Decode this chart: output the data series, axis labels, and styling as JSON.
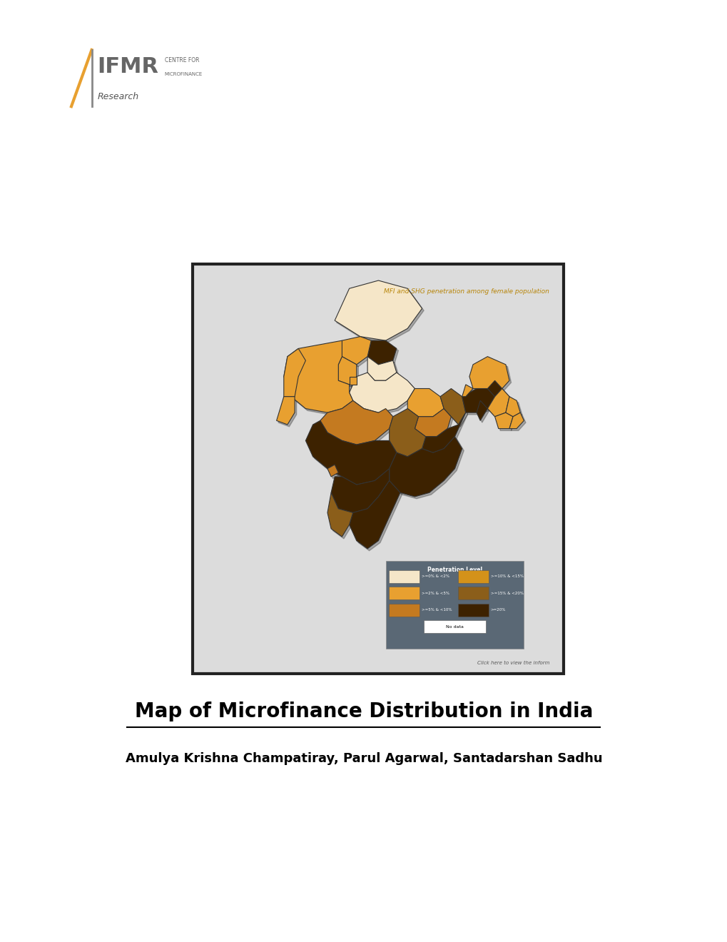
{
  "title": "Map of Microfinance Distribution in India",
  "authors": "Amulya Krishna Champatiray, Parul Agarwal, Santadarshan Sadhu",
  "map_subtitle": "MFI and SHG penetration among female population",
  "map_legend_title": "Penetration Level",
  "c_very_low": "#f5e6c8",
  "c_low": "#e8a030",
  "c_medium": "#c47a20",
  "c_high": "#d4921a",
  "c_very_high": "#8b5e1a",
  "c_max": "#3d2200",
  "c_nodata": "#f5f5f5",
  "map_bg": "#dcdcdc",
  "map_border": "#222222",
  "legend_bg": "#5a6875",
  "bg_color": "#ffffff"
}
